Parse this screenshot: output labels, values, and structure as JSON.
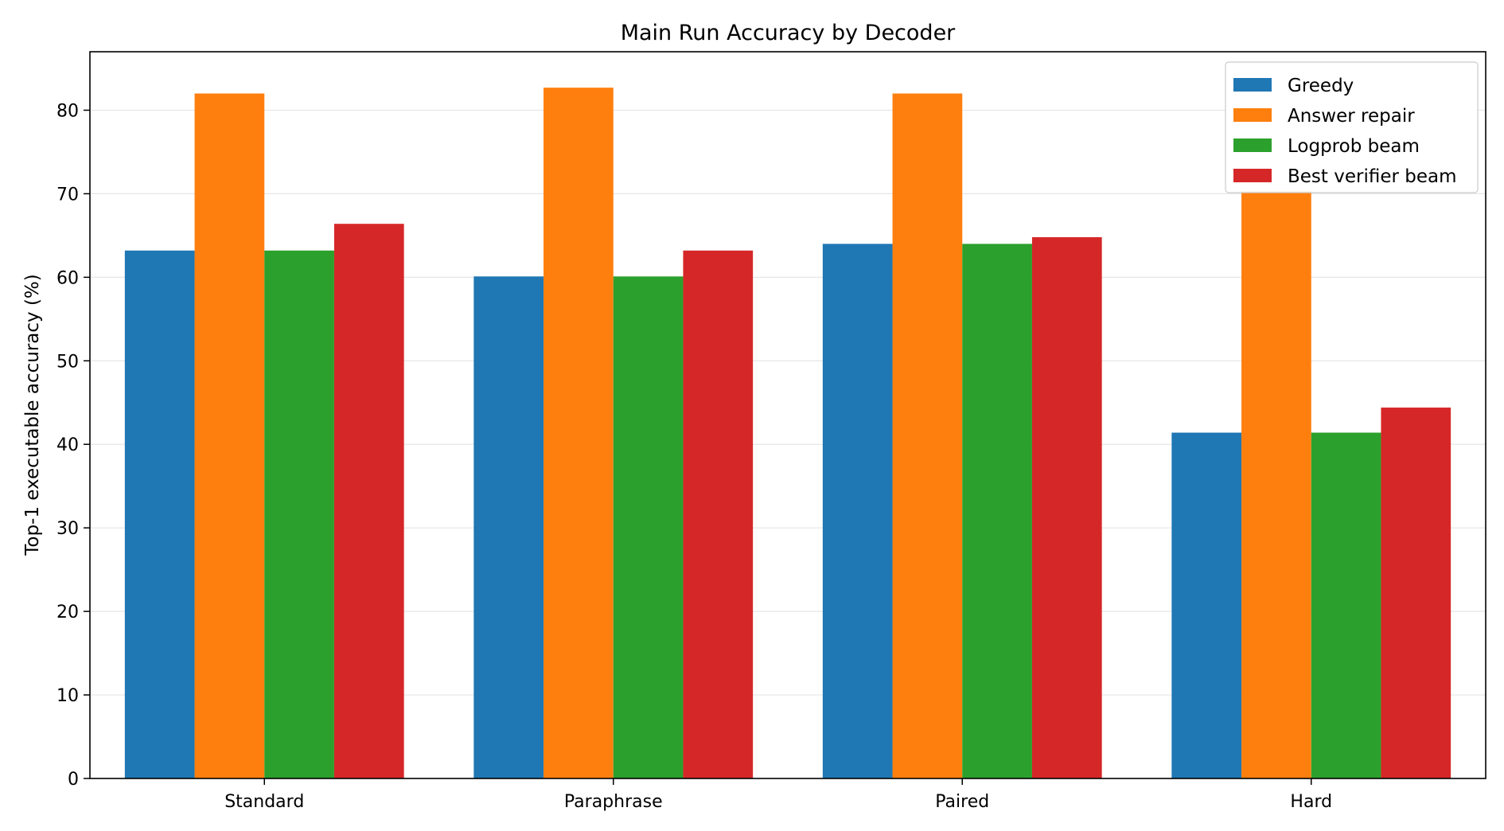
{
  "chart_data": {
    "type": "bar",
    "title": "Main Run Accuracy by Decoder",
    "xlabel": "",
    "ylabel": "Top-1 executable accuracy (%)",
    "categories": [
      "Standard",
      "Paraphrase",
      "Paired",
      "Hard"
    ],
    "series": [
      {
        "name": "Greedy",
        "color": "#1f77b4",
        "values": [
          63.2,
          60.1,
          64.0,
          41.4
        ]
      },
      {
        "name": "Answer repair",
        "color": "#ff7f0e",
        "values": [
          82.0,
          82.7,
          82.0,
          70.3
        ]
      },
      {
        "name": "Logprob beam",
        "color": "#2ca02c",
        "values": [
          63.2,
          60.1,
          64.0,
          41.4
        ]
      },
      {
        "name": "Best verifier beam",
        "color": "#d62728",
        "values": [
          66.4,
          63.2,
          64.8,
          44.4
        ]
      }
    ],
    "ylim": [
      0,
      87
    ],
    "yticks": [
      0,
      10,
      20,
      30,
      40,
      50,
      60,
      70,
      80
    ],
    "grid": "y",
    "legend": "top-right"
  }
}
